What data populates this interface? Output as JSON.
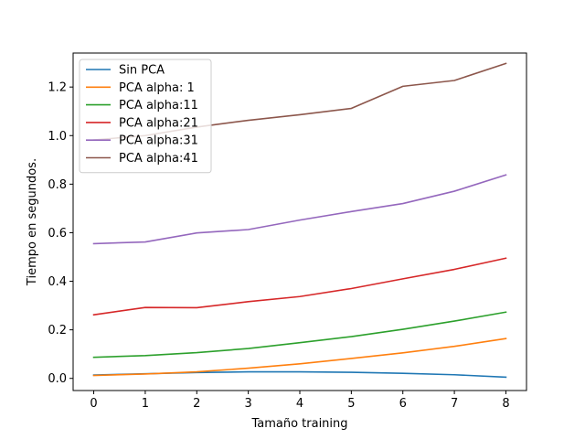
{
  "chart_data": {
    "type": "line",
    "title": "",
    "xlabel": "Tamaño training",
    "ylabel": "Tiempo en segundos.",
    "x": [
      0,
      1,
      2,
      3,
      4,
      5,
      6,
      7,
      8
    ],
    "xlim": [
      -0.4,
      8.4
    ],
    "ylim": [
      -0.05,
      1.34
    ],
    "xticks": [
      "0",
      "1",
      "2",
      "3",
      "4",
      "5",
      "6",
      "7",
      "8"
    ],
    "yticks": [
      "0.0",
      "0.2",
      "0.4",
      "0.6",
      "0.8",
      "1.0",
      "1.2"
    ],
    "grid": false,
    "legend_position": "top-left",
    "series": [
      {
        "name": "Sin PCA",
        "color": "#1f77b4",
        "values": [
          0.014,
          0.019,
          0.024,
          0.027,
          0.027,
          0.025,
          0.021,
          0.015,
          0.005
        ]
      },
      {
        "name": "PCA alpha: 1",
        "color": "#ff7f0e",
        "values": [
          0.012,
          0.018,
          0.027,
          0.042,
          0.06,
          0.082,
          0.105,
          0.132,
          0.164
        ]
      },
      {
        "name": "PCA alpha:11",
        "color": "#2ca02c",
        "values": [
          0.087,
          0.094,
          0.106,
          0.123,
          0.147,
          0.172,
          0.202,
          0.236,
          0.273
        ]
      },
      {
        "name": "PCA alpha:21",
        "color": "#d62728",
        "values": [
          0.262,
          0.292,
          0.291,
          0.316,
          0.337,
          0.37,
          0.41,
          0.449,
          0.495
        ]
      },
      {
        "name": "PCA alpha:31",
        "color": "#9467bd",
        "values": [
          0.555,
          0.562,
          0.599,
          0.613,
          0.652,
          0.687,
          0.72,
          0.771,
          0.838
        ]
      },
      {
        "name": "PCA alpha:41",
        "color": "#8c564b",
        "values": [
          0.982,
          1.0,
          1.035,
          1.063,
          1.086,
          1.112,
          1.203,
          1.227,
          1.297
        ]
      }
    ]
  }
}
